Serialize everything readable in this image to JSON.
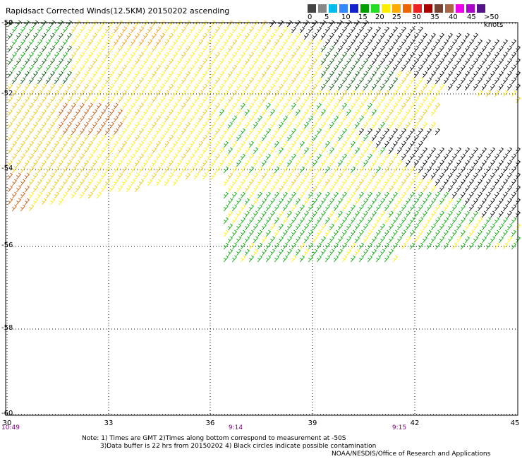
{
  "header": {
    "title": "Rapidsact Corrected Winds(12.5KM) 20150202 ascending"
  },
  "legend": {
    "colors": [
      "#444444",
      "#888888",
      "#00bbee",
      "#3388ff",
      "#1122cc",
      "#00a000",
      "#22dd22",
      "#ffee00",
      "#ffaa00",
      "#ee6600",
      "#ee2222",
      "#aa0000",
      "#774433",
      "#aa6644",
      "#ee00ee",
      "#aa00cc",
      "#551188"
    ],
    "labels": [
      "0",
      "5",
      "10",
      "15",
      "20",
      "25",
      "30",
      "35",
      "40",
      "45",
      ">50 knots"
    ]
  },
  "map": {
    "lon_ticks": [
      "30",
      "33",
      "36",
      "39",
      "42",
      "45"
    ],
    "lat_ticks": [
      "-50",
      "-52",
      "-54",
      "-56",
      "-58",
      "-60"
    ],
    "times": [
      "10:49",
      "9:14",
      "9:15"
    ],
    "barb_colors": {
      "black": "#000000",
      "dark_green": "#005500",
      "green": "#00aa00",
      "yellow": "#ffee00",
      "gold": "#e8c800",
      "orange": "#ee9900",
      "dark_orange": "#cc5500",
      "grid": "#000000"
    }
  },
  "notes": {
    "line1": "Note: 1) Times are GMT 2)Times along bottom correspond to measurement at -50S",
    "line2": "3)Data buffer is 22 hrs from 20150202 4) Black circles indicate possible contamination",
    "credit": "NOAA/NESDIS/Office of Research and Applications"
  }
}
